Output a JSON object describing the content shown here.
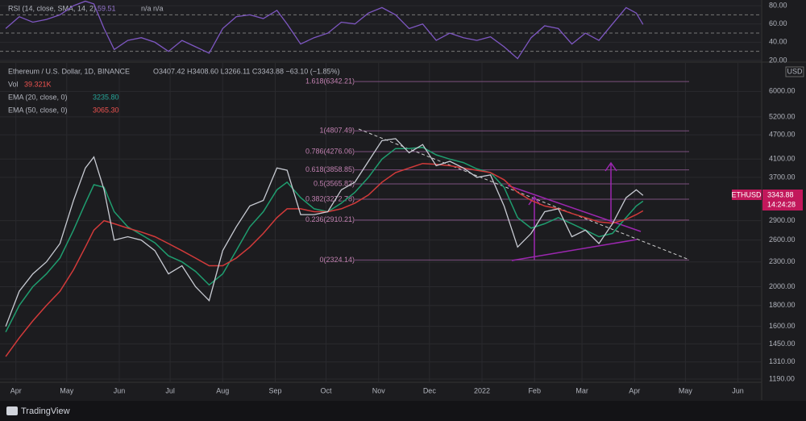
{
  "header": {
    "symbol": "Ethereum / U.S. Dollar, 1D, BINANCE",
    "ohlc": "O3407.42 H3408.60 L3266.11 C3343.88 −63.10 (−1.85%)",
    "volume_label": "Vol",
    "volume": "39.321K"
  },
  "price_tag": {
    "symbol": "ETHUSD",
    "price": "3343.88",
    "countdown": "14:24:28"
  },
  "currency": "USD",
  "brand": "TradingView",
  "chart_data": [
    {
      "type": "line",
      "title": "RSI (14, close, SMA, 14, 2)",
      "value_text": "59.51",
      "ma_text": "n/a n/a",
      "color": "#7e57c2",
      "x": [
        -6,
        2,
        10,
        18,
        26,
        34,
        41,
        46,
        52,
        58,
        66,
        74,
        82,
        90,
        98,
        106,
        114,
        122,
        130,
        138,
        146,
        154,
        160,
        168,
        176,
        184,
        192,
        200,
        208,
        216,
        224,
        232,
        240,
        248,
        256,
        264,
        272,
        280,
        288,
        296,
        304,
        312,
        320,
        328,
        336,
        344,
        352,
        360,
        366,
        370
      ],
      "values": [
        55,
        68,
        62,
        65,
        70,
        80,
        85,
        82,
        55,
        32,
        42,
        45,
        40,
        30,
        42,
        35,
        28,
        55,
        68,
        70,
        66,
        75,
        60,
        38,
        45,
        50,
        62,
        60,
        72,
        78,
        70,
        55,
        60,
        42,
        50,
        45,
        42,
        46,
        35,
        22,
        45,
        58,
        55,
        38,
        50,
        42,
        60,
        78,
        72,
        59.51
      ],
      "xlim": [
        -7,
        440
      ],
      "ylim": [
        19.1,
        86.3
      ],
      "yticks": [
        {
          "value": 20,
          "label": "20.00"
        },
        {
          "value": 40,
          "label": "40.00"
        },
        {
          "value": 60,
          "label": "60.00"
        },
        {
          "value": 80,
          "label": "80.00"
        }
      ],
      "hlines": [
        30,
        50,
        70
      ]
    },
    {
      "type": "line",
      "log_scale": true,
      "color": "#c8cbd3",
      "x": [
        -6,
        2,
        10,
        18,
        26,
        34,
        41,
        46,
        52,
        58,
        66,
        74,
        82,
        90,
        98,
        106,
        114,
        122,
        130,
        138,
        146,
        154,
        160,
        168,
        176,
        184,
        192,
        200,
        208,
        216,
        224,
        232,
        240,
        248,
        256,
        264,
        272,
        280,
        288,
        296,
        304,
        312,
        320,
        328,
        336,
        344,
        352,
        360,
        366,
        370
      ],
      "values": [
        1600,
        1950,
        2150,
        2300,
        2550,
        3250,
        3900,
        4150,
        3450,
        2600,
        2650,
        2600,
        2450,
        2150,
        2250,
        2000,
        1850,
        2450,
        2800,
        3150,
        3250,
        3900,
        3850,
        3000,
        3000,
        3050,
        3450,
        3600,
        4050,
        4550,
        4600,
        4250,
        4450,
        3950,
        4050,
        3900,
        3700,
        3750,
        3150,
        2500,
        2700,
        3050,
        3100,
        2650,
        2750,
        2550,
        2850,
        3300,
        3450,
        3344
      ],
      "series": [
        {
          "name": "EMA (20, close, 0)",
          "last": "3235.80",
          "color": "#1f9d6f",
          "values": [
            1550,
            1800,
            2000,
            2150,
            2350,
            2750,
            3200,
            3550,
            3500,
            3050,
            2800,
            2680,
            2560,
            2380,
            2300,
            2180,
            2020,
            2150,
            2450,
            2800,
            3050,
            3450,
            3600,
            3300,
            3100,
            3050,
            3200,
            3400,
            3700,
            4100,
            4350,
            4350,
            4380,
            4200,
            4100,
            4020,
            3880,
            3800,
            3500,
            2950,
            2780,
            2850,
            2950,
            2850,
            2750,
            2650,
            2700,
            2950,
            3150,
            3236
          ]
        },
        {
          "name": "EMA (50, close, 0)",
          "last": "3065.30",
          "color": "#d23a3a",
          "values": [
            1350,
            1500,
            1650,
            1800,
            1950,
            2200,
            2500,
            2750,
            2900,
            2850,
            2780,
            2720,
            2650,
            2550,
            2450,
            2350,
            2250,
            2250,
            2350,
            2500,
            2700,
            2950,
            3100,
            3100,
            3050,
            3050,
            3100,
            3200,
            3350,
            3600,
            3800,
            3900,
            4000,
            3980,
            3950,
            3900,
            3850,
            3800,
            3650,
            3400,
            3250,
            3150,
            3100,
            3020,
            2950,
            2880,
            2860,
            2920,
            3000,
            3065
          ]
        }
      ],
      "xlim": [
        -7,
        440
      ],
      "ylim": [
        1163,
        6980
      ],
      "xticks": [
        {
          "value": 0,
          "label": "Apr"
        },
        {
          "value": 30,
          "label": "May"
        },
        {
          "value": 61,
          "label": "Jun"
        },
        {
          "value": 91,
          "label": "Jul"
        },
        {
          "value": 122,
          "label": "Aug"
        },
        {
          "value": 153,
          "label": "Sep"
        },
        {
          "value": 183,
          "label": "Oct"
        },
        {
          "value": 214,
          "label": "Nov"
        },
        {
          "value": 244,
          "label": "Dec"
        },
        {
          "value": 275,
          "label": "2022"
        },
        {
          "value": 306,
          "label": "Feb"
        },
        {
          "value": 334,
          "label": "Mar"
        },
        {
          "value": 365,
          "label": "Apr"
        },
        {
          "value": 395,
          "label": "May"
        },
        {
          "value": 426,
          "label": "Jun"
        }
      ],
      "yticks": [
        {
          "value": 1190,
          "label": "1190.00"
        },
        {
          "value": 1310,
          "label": "1310.00"
        },
        {
          "value": 1450,
          "label": "1450.00"
        },
        {
          "value": 1600,
          "label": "1600.00"
        },
        {
          "value": 1800,
          "label": "1800.00"
        },
        {
          "value": 2000,
          "label": "2000.00"
        },
        {
          "value": 2300,
          "label": "2300.00"
        },
        {
          "value": 2600,
          "label": "2600.00"
        },
        {
          "value": 2900,
          "label": "2900.00"
        },
        {
          "value": 3700,
          "label": "3700.00"
        },
        {
          "value": 4100,
          "label": "4100.00"
        },
        {
          "value": 4700,
          "label": "4700.00"
        },
        {
          "value": 5200,
          "label": "5200.00"
        },
        {
          "value": 6000,
          "label": "6000.00"
        }
      ],
      "fib_levels": [
        {
          "value": 6342.21,
          "label": "1.618(6342.21)"
        },
        {
          "value": 4807.49,
          "label": "1(4807.49)"
        },
        {
          "value": 4276.06,
          "label": "0.786(4276.06)"
        },
        {
          "value": 3858.85,
          "label": "0.618(3858.85)"
        },
        {
          "value": 3565.82,
          "label": "0.5(3565.82)"
        },
        {
          "value": 3272.78,
          "label": "0.382(3272.78)"
        },
        {
          "value": 2910.21,
          "label": "0.236(2910.21)"
        },
        {
          "value": 2324.14,
          "label": "0(2324.14)"
        }
      ]
    }
  ]
}
